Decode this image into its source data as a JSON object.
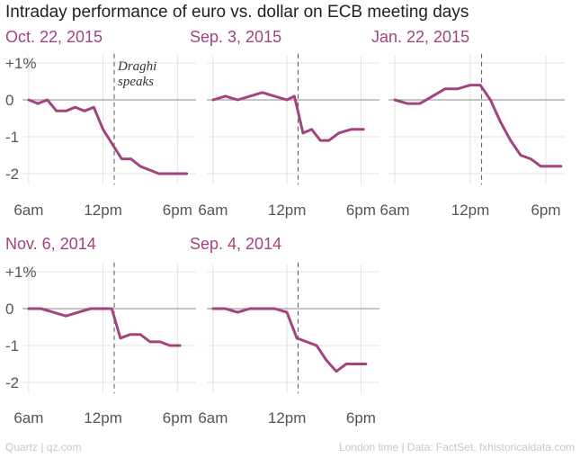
{
  "title": "Intraday performance of euro vs. dollar on ECB meeting days",
  "footer": {
    "left": "Quartz | qz.com",
    "right": "London time | Data: FactSet, fxhistoricaldata.com"
  },
  "colors": {
    "series": "#a3447f",
    "zero_line": "#a0a0a0",
    "grid": "#e3e3e3",
    "event_line": "#555555"
  },
  "chart_data": [
    {
      "type": "line",
      "title": "Oct. 22, 2015",
      "xlabel": "",
      "ylabel": "",
      "xlim": [
        5.5,
        19.5
      ],
      "ylim": [
        -2.3,
        1.2
      ],
      "xticks": [
        6,
        12,
        18
      ],
      "xtick_labels": [
        "6am",
        "12pm",
        "6pm"
      ],
      "yticks": [
        1,
        0,
        -1,
        -2
      ],
      "ytick_labels": [
        "+1%",
        "0",
        "-1",
        "-2"
      ],
      "event_x": 12.9,
      "annotation": {
        "lines": [
          "Draghi",
          "speaks"
        ]
      },
      "x": [
        6,
        6.75,
        7.5,
        8.25,
        9,
        9.75,
        10.5,
        11.25,
        12,
        12.75,
        13.5,
        14.25,
        15,
        15.75,
        16.5,
        17.25,
        18,
        18.75
      ],
      "values": [
        0,
        -0.1,
        0,
        -0.3,
        -0.3,
        -0.2,
        -0.3,
        -0.2,
        -0.8,
        -1.2,
        -1.6,
        -1.6,
        -1.8,
        -1.9,
        -2.0,
        -2.0,
        -2.0,
        -2.0
      ]
    },
    {
      "type": "line",
      "title": "Sep. 3, 2015",
      "xlabel": "",
      "ylabel": "",
      "xlim": [
        5.5,
        19.5
      ],
      "ylim": [
        -2.3,
        1.2
      ],
      "xticks": [
        6,
        12,
        18
      ],
      "xtick_labels": [
        "6am",
        "12pm",
        "6pm"
      ],
      "yticks": [],
      "ytick_labels": [],
      "event_x": 12.9,
      "x": [
        6,
        7,
        8,
        9,
        10,
        11,
        12,
        12.6,
        13.3,
        14,
        14.7,
        15.4,
        16.2,
        17.2,
        18.2
      ],
      "values": [
        0,
        0.1,
        0,
        0.1,
        0.2,
        0.1,
        0,
        0.1,
        -0.9,
        -0.8,
        -1.1,
        -1.1,
        -0.9,
        -0.8,
        -0.8
      ]
    },
    {
      "type": "line",
      "title": "Jan. 22, 2015",
      "xlabel": "",
      "ylabel": "",
      "xlim": [
        5.5,
        19.5
      ],
      "ylim": [
        -2.3,
        1.2
      ],
      "xticks": [
        6,
        12,
        18
      ],
      "xtick_labels": [
        "6am",
        "12pm",
        "6pm"
      ],
      "yticks": [],
      "ytick_labels": [],
      "event_x": 12.9,
      "x": [
        6,
        7,
        8,
        9,
        10,
        11,
        12,
        12.8,
        13.6,
        14.4,
        15.2,
        16,
        16.8,
        17.6,
        18.4,
        19.2
      ],
      "values": [
        0,
        -0.1,
        -0.1,
        0.1,
        0.3,
        0.3,
        0.4,
        0.4,
        0,
        -0.6,
        -1.1,
        -1.5,
        -1.6,
        -1.8,
        -1.8,
        -1.8
      ]
    },
    {
      "type": "line",
      "title": "Nov. 6, 2014",
      "xlabel": "",
      "ylabel": "",
      "xlim": [
        5.5,
        19.5
      ],
      "ylim": [
        -2.3,
        1.2
      ],
      "xticks": [
        6,
        12,
        18
      ],
      "xtick_labels": [
        "6am",
        "12pm",
        "6pm"
      ],
      "yticks": [
        1,
        0,
        -1,
        -2
      ],
      "ytick_labels": [
        "+1%",
        "0",
        "-1",
        "-2"
      ],
      "event_x": 12.9,
      "x": [
        6,
        7,
        8,
        9,
        10,
        11,
        12,
        12.7,
        13.4,
        14.2,
        15,
        15.8,
        16.6,
        17.4,
        18.2
      ],
      "values": [
        0,
        0,
        -0.1,
        -0.2,
        -0.1,
        0,
        0,
        0,
        -0.8,
        -0.7,
        -0.7,
        -0.9,
        -0.9,
        -1.0,
        -1.0
      ]
    },
    {
      "type": "line",
      "title": "Sep. 4, 2014",
      "xlabel": "",
      "ylabel": "",
      "xlim": [
        5.5,
        19.5
      ],
      "ylim": [
        -2.3,
        1.2
      ],
      "xticks": [
        6,
        12,
        18
      ],
      "xtick_labels": [
        "6am",
        "12pm",
        "6pm"
      ],
      "yticks": [],
      "ytick_labels": [],
      "event_x": 12.9,
      "x": [
        6,
        7,
        8,
        9,
        10,
        11,
        12,
        12.8,
        13.6,
        14.4,
        15.2,
        16,
        16.8,
        17.6,
        18.4
      ],
      "values": [
        0,
        0,
        -0.1,
        0,
        0,
        0,
        -0.1,
        -0.8,
        -0.9,
        -1.0,
        -1.4,
        -1.7,
        -1.5,
        -1.5,
        -1.5
      ]
    }
  ]
}
